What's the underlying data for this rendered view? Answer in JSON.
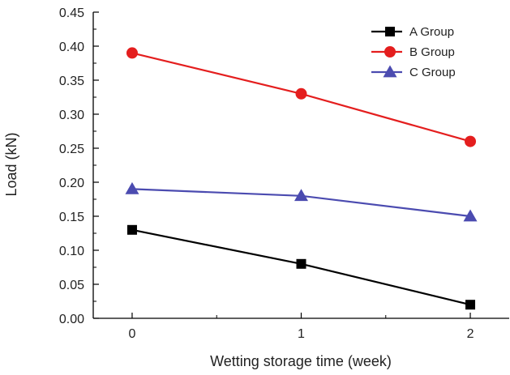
{
  "chart_data": {
    "type": "line",
    "title": "",
    "xlabel": "Wetting storage time (week)",
    "ylabel": "Load (kN)",
    "x": [
      0,
      1,
      2
    ],
    "x_ticks": [
      "0",
      "1",
      "2"
    ],
    "xlim": [
      -0.23,
      2.23
    ],
    "ylim": [
      0.0,
      0.45
    ],
    "y_ticks": [
      "0.00",
      "0.05",
      "0.10",
      "0.15",
      "0.20",
      "0.25",
      "0.30",
      "0.35",
      "0.40",
      "0.45"
    ],
    "grid": false,
    "legend_position": "top-right",
    "series": [
      {
        "name": "A Group",
        "values": [
          0.13,
          0.08,
          0.02
        ],
        "color": "#000000",
        "marker": "square"
      },
      {
        "name": "B Group",
        "values": [
          0.39,
          0.33,
          0.26
        ],
        "color": "#e41e1e",
        "marker": "circle"
      },
      {
        "name": "C Group",
        "values": [
          0.19,
          0.18,
          0.15
        ],
        "color": "#4b4bb0",
        "marker": "triangle"
      }
    ]
  }
}
